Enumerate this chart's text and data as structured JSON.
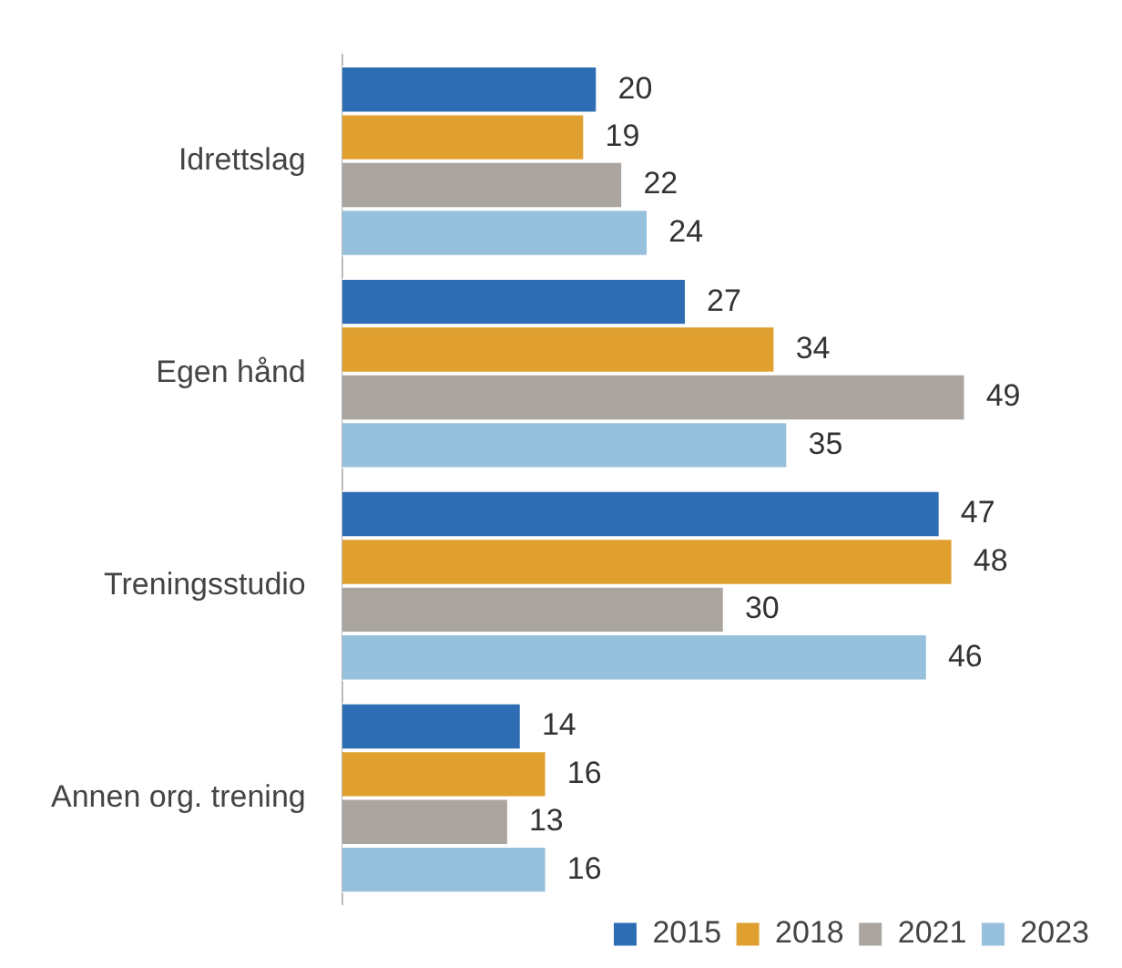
{
  "chart_data": {
    "type": "bar",
    "orientation": "horizontal",
    "categories": [
      "Idrettslag",
      "Egen hånd",
      "Treningsstudio",
      "Annen org. trening"
    ],
    "series": [
      {
        "name": "2015",
        "color": "#2e6db4",
        "values": [
          20,
          27,
          47,
          14
        ]
      },
      {
        "name": "2018",
        "color": "#e0a030",
        "values": [
          19,
          34,
          48,
          16
        ]
      },
      {
        "name": "2021",
        "color": "#aba59f",
        "values": [
          22,
          49,
          30,
          13
        ]
      },
      {
        "name": "2023",
        "color": "#96c0dc",
        "values": [
          24,
          35,
          46,
          16
        ]
      }
    ],
    "data_labels": true,
    "legend": "bottom right"
  }
}
